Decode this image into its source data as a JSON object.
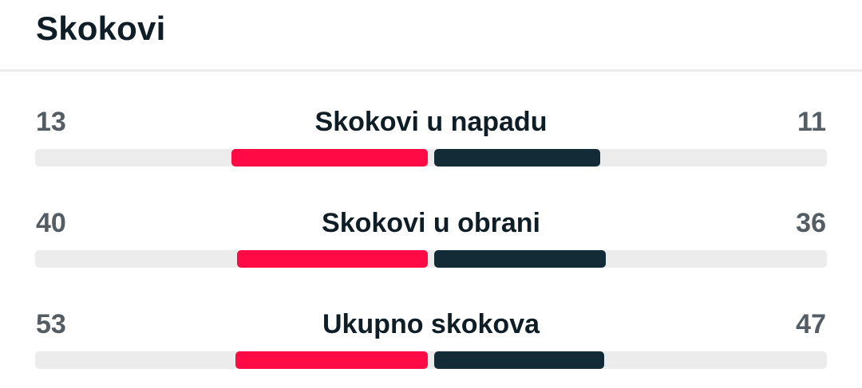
{
  "section": {
    "title": "Skokovi"
  },
  "colors": {
    "home_bar": "#ff0a45",
    "away_bar": "#132b36",
    "track": "#ececec"
  },
  "stats": [
    {
      "label": "Skokovi u napadu",
      "home": "13",
      "away": "11",
      "home_share": 0.542,
      "away_share": 0.458
    },
    {
      "label": "Skokovi u obrani",
      "home": "40",
      "away": "36",
      "home_share": 0.526,
      "away_share": 0.474
    },
    {
      "label": "Ukupno skokova",
      "home": "53",
      "away": "47",
      "home_share": 0.53,
      "away_share": 0.47
    }
  ]
}
